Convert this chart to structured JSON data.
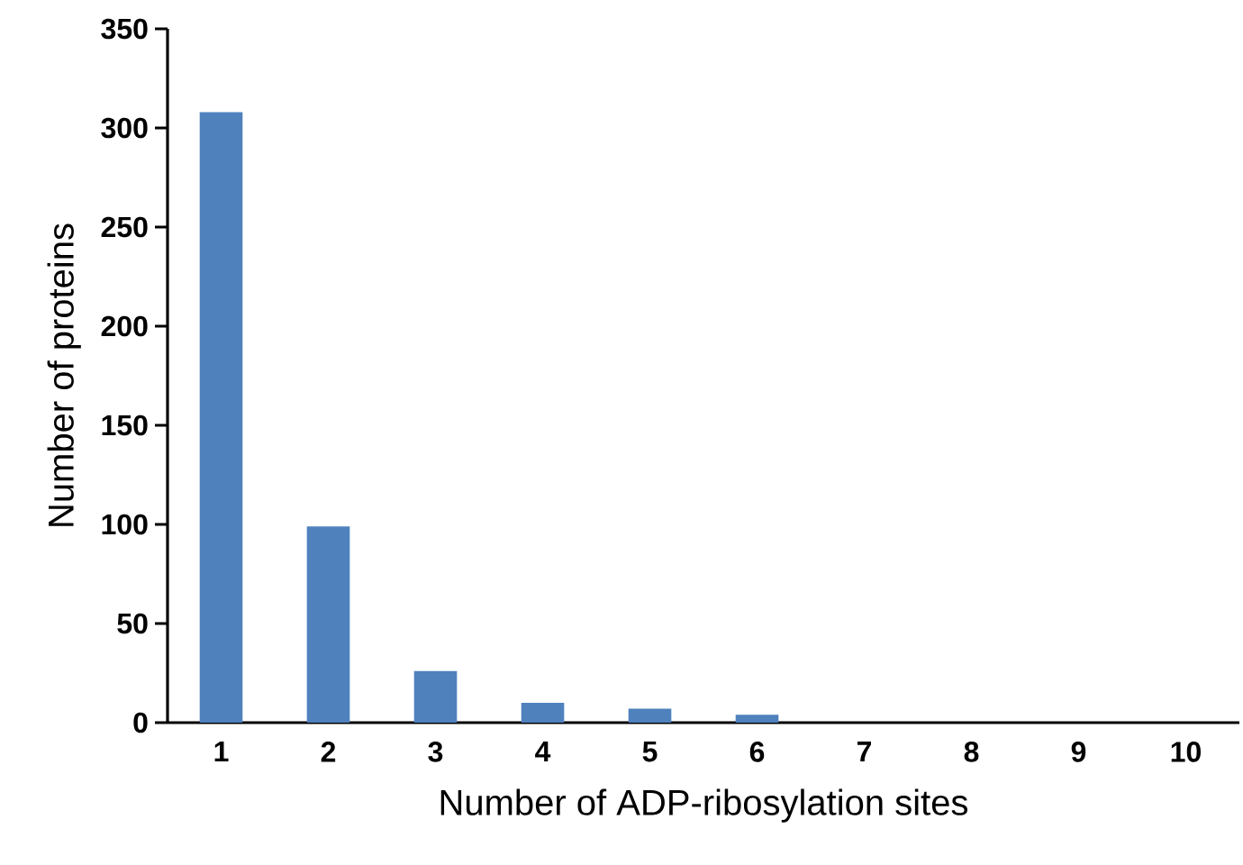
{
  "chart_data": {
    "type": "bar",
    "xlabel": "Number of ADP-ribosylation sites",
    "ylabel": "Number of proteins",
    "categories": [
      "1",
      "2",
      "3",
      "4",
      "5",
      "6",
      "7",
      "8",
      "9",
      "10"
    ],
    "values": [
      308,
      99,
      26,
      10,
      7,
      4,
      0,
      0,
      0,
      0
    ],
    "color": "#4f81bd",
    "ylim": [
      0,
      350
    ],
    "yticks": [
      0,
      50,
      100,
      150,
      200,
      250,
      300,
      350
    ]
  }
}
